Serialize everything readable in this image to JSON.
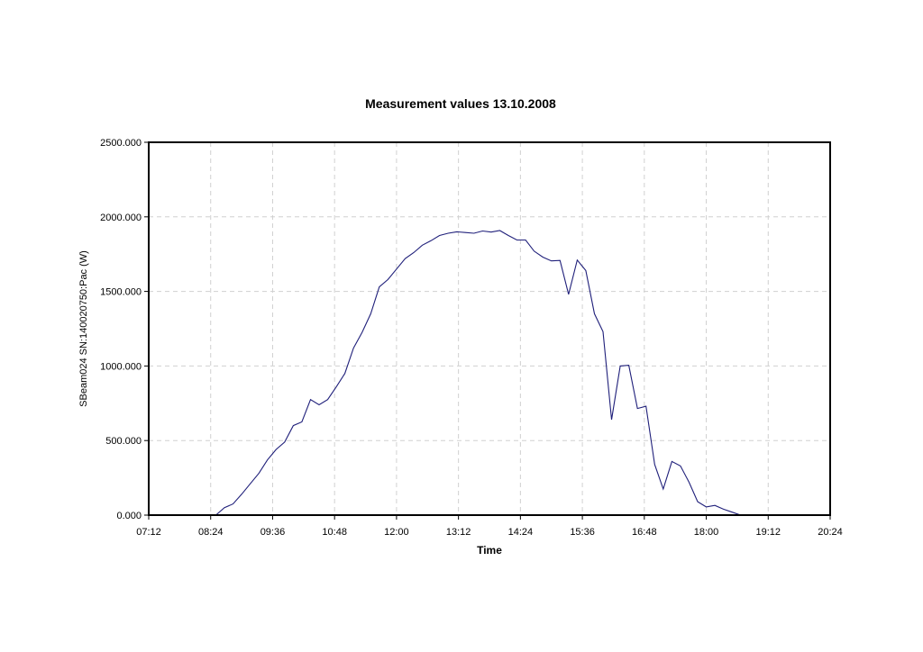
{
  "chart_data": {
    "type": "line",
    "title": "Measurement values 13.10.2008",
    "xlabel": "Time",
    "ylabel": "SBeam024 SN:14002075​0:Pac (W)",
    "x_ticks": [
      "07:12",
      "08:24",
      "09:36",
      "10:48",
      "12:00",
      "13:12",
      "14:24",
      "15:36",
      "16:48",
      "18:00",
      "19:12",
      "20:24"
    ],
    "y_ticks": [
      "0.000",
      "500.000",
      "1000.000",
      "1500.000",
      "2000.000",
      "2500.000"
    ],
    "xlim": [
      "07:12",
      "20:24"
    ],
    "ylim": [
      0,
      2500
    ],
    "grid": true,
    "series": [
      {
        "color": "#1f1f7a",
        "points": [
          [
            "08:30",
            0
          ],
          [
            "08:40",
            50
          ],
          [
            "08:50",
            75
          ],
          [
            "09:00",
            140
          ],
          [
            "09:10",
            210
          ],
          [
            "09:20",
            280
          ],
          [
            "09:30",
            370
          ],
          [
            "09:40",
            440
          ],
          [
            "09:50",
            490
          ],
          [
            "10:00",
            600
          ],
          [
            "10:10",
            625
          ],
          [
            "10:20",
            775
          ],
          [
            "10:30",
            740
          ],
          [
            "10:40",
            775
          ],
          [
            "10:50",
            860
          ],
          [
            "11:00",
            950
          ],
          [
            "11:10",
            1120
          ],
          [
            "11:20",
            1225
          ],
          [
            "11:30",
            1350
          ],
          [
            "11:40",
            1530
          ],
          [
            "11:50",
            1580
          ],
          [
            "12:00",
            1650
          ],
          [
            "12:10",
            1720
          ],
          [
            "12:20",
            1760
          ],
          [
            "12:30",
            1810
          ],
          [
            "12:40",
            1840
          ],
          [
            "12:50",
            1875
          ],
          [
            "13:00",
            1890
          ],
          [
            "13:10",
            1900
          ],
          [
            "13:20",
            1895
          ],
          [
            "13:30",
            1890
          ],
          [
            "13:40",
            1905
          ],
          [
            "13:50",
            1898
          ],
          [
            "14:00",
            1908
          ],
          [
            "14:10",
            1875
          ],
          [
            "14:20",
            1845
          ],
          [
            "14:30",
            1845
          ],
          [
            "14:40",
            1770
          ],
          [
            "14:50",
            1730
          ],
          [
            "15:00",
            1705
          ],
          [
            "15:10",
            1708
          ],
          [
            "15:20",
            1480
          ],
          [
            "15:30",
            1710
          ],
          [
            "15:40",
            1640
          ],
          [
            "15:50",
            1350
          ],
          [
            "16:00",
            1230
          ],
          [
            "16:10",
            640
          ],
          [
            "16:20",
            1000
          ],
          [
            "16:30",
            1005
          ],
          [
            "16:40",
            715
          ],
          [
            "16:50",
            730
          ],
          [
            "17:00",
            340
          ],
          [
            "17:10",
            175
          ],
          [
            "17:20",
            360
          ],
          [
            "17:30",
            330
          ],
          [
            "17:40",
            220
          ],
          [
            "17:50",
            90
          ],
          [
            "18:00",
            55
          ],
          [
            "18:10",
            65
          ],
          [
            "18:20",
            40
          ],
          [
            "18:30",
            20
          ],
          [
            "18:40",
            0
          ]
        ]
      }
    ]
  }
}
